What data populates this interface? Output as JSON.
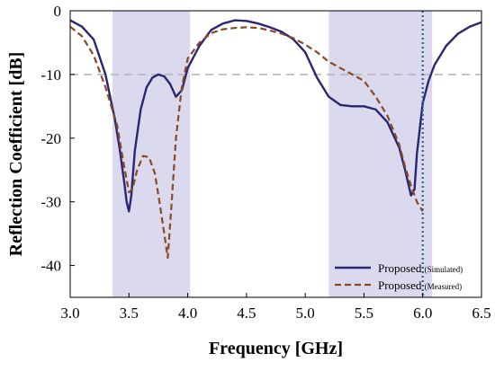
{
  "chart_data": {
    "type": "line",
    "xlabel": "Frequency [GHz]",
    "ylabel": "Reflection Coefficient [dB]",
    "xlim": [
      3.0,
      6.5
    ],
    "ylim": [
      -45,
      0
    ],
    "xticks": [
      "3.0",
      "3.5",
      "4.0",
      "4.5",
      "5.0",
      "5.5",
      "6.0",
      "6.5"
    ],
    "xtick_values": [
      3.0,
      3.5,
      4.0,
      4.5,
      5.0,
      5.5,
      6.0,
      6.5
    ],
    "yticks": [
      "0",
      "-10",
      "-20",
      "-30",
      "-40"
    ],
    "ytick_values": [
      0,
      -10,
      -20,
      -30,
      -40
    ],
    "grid": false,
    "legend_position": "bottom-right",
    "reference_line_y": -10,
    "marker_line_x": 6.0,
    "shaded_bands": [
      [
        3.36,
        4.02
      ],
      [
        5.2,
        6.08
      ]
    ],
    "colors": {
      "simulated": "#2a2673",
      "measured": "#8b4a22",
      "band": "#d3d2ea",
      "ref_line": "#b8b8b8",
      "marker_line": "#2b6f94"
    },
    "series": [
      {
        "name": "Proposed",
        "note": "(Simulated)",
        "style": "solid",
        "x": [
          3.0,
          3.1,
          3.2,
          3.3,
          3.38,
          3.42,
          3.46,
          3.48,
          3.5,
          3.52,
          3.55,
          3.6,
          3.65,
          3.7,
          3.75,
          3.8,
          3.85,
          3.9,
          3.95,
          4.0,
          4.1,
          4.2,
          4.3,
          4.4,
          4.5,
          4.6,
          4.7,
          4.8,
          4.9,
          5.0,
          5.1,
          5.2,
          5.3,
          5.4,
          5.5,
          5.6,
          5.7,
          5.8,
          5.85,
          5.9,
          5.93,
          5.95,
          6.0,
          6.05,
          6.1,
          6.2,
          6.3,
          6.4,
          6.5
        ],
        "y": [
          -1.5,
          -2.5,
          -4.5,
          -10.0,
          -17.0,
          -21.5,
          -27.0,
          -30.0,
          -31.5,
          -29.0,
          -22.0,
          -15.5,
          -12.0,
          -10.5,
          -10.0,
          -10.3,
          -11.5,
          -13.5,
          -12.5,
          -9.0,
          -5.5,
          -3.0,
          -2.0,
          -1.5,
          -1.6,
          -2.0,
          -2.6,
          -3.3,
          -4.5,
          -6.5,
          -10.5,
          -13.5,
          -14.8,
          -15.0,
          -15.0,
          -15.5,
          -17.5,
          -21.5,
          -25.0,
          -29.0,
          -28.0,
          -22.5,
          -14.5,
          -11.0,
          -8.5,
          -5.5,
          -3.6,
          -2.5,
          -1.8
        ]
      },
      {
        "name": "Proposed",
        "note": "(Measured)",
        "style": "dashed",
        "x": [
          3.0,
          3.1,
          3.2,
          3.3,
          3.4,
          3.45,
          3.5,
          3.53,
          3.57,
          3.62,
          3.67,
          3.72,
          3.76,
          3.8,
          3.83,
          3.86,
          3.9,
          3.95,
          4.0,
          4.1,
          4.2,
          4.3,
          4.4,
          4.5,
          4.6,
          4.7,
          4.8,
          4.9,
          5.0,
          5.1,
          5.2,
          5.3,
          5.4,
          5.5,
          5.6,
          5.7,
          5.8,
          5.85,
          5.9,
          5.95,
          6.0
        ],
        "y": [
          -2.5,
          -4.0,
          -7.0,
          -12.0,
          -18.0,
          -23.5,
          -28.5,
          -28.0,
          -25.0,
          -22.8,
          -23.0,
          -25.5,
          -30.0,
          -35.0,
          -38.8,
          -31.0,
          -20.0,
          -12.0,
          -7.5,
          -5.0,
          -3.5,
          -2.9,
          -2.7,
          -2.6,
          -2.7,
          -3.1,
          -3.6,
          -4.3,
          -5.3,
          -6.5,
          -8.0,
          -9.0,
          -10.0,
          -11.0,
          -13.5,
          -16.5,
          -21.0,
          -24.5,
          -27.5,
          -30.0,
          -31.5
        ]
      }
    ]
  }
}
